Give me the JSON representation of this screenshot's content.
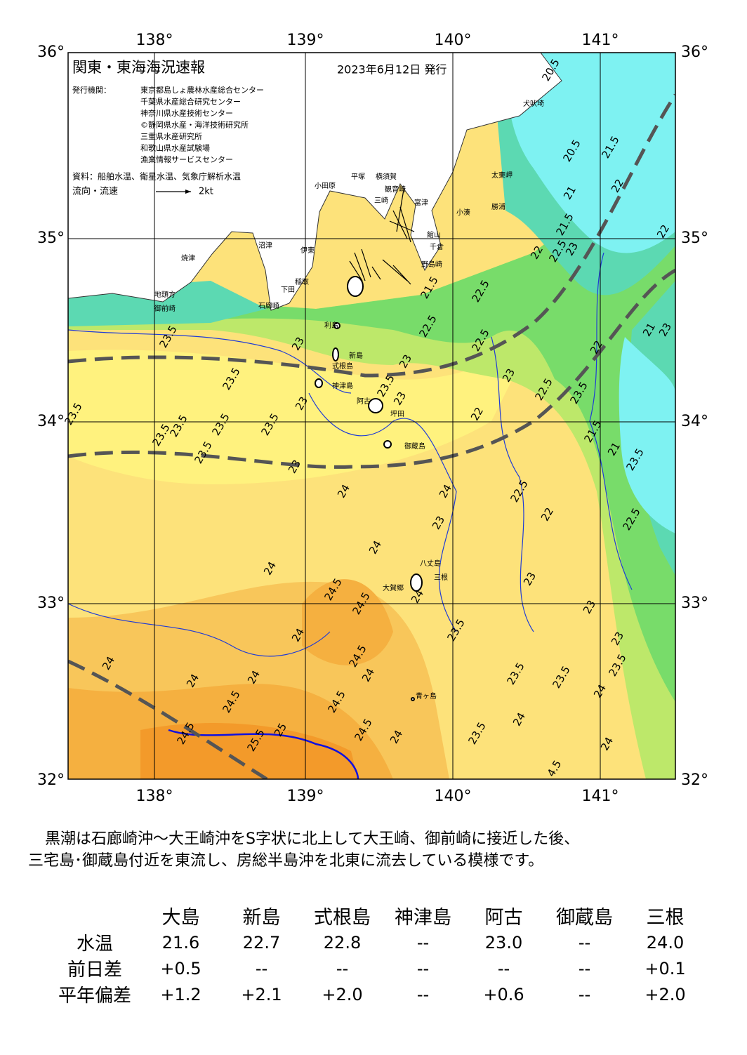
{
  "header": {
    "title": "関東・東海海況速報",
    "date": "2023年6月12日 発行",
    "issuers_label": "発行機関：",
    "issuers": [
      "東京都島しょ農林水産総合センター",
      "千葉県水産総合研究センター",
      "神奈川県水産技術センター",
      "©静岡県水産・海洋技術研究所",
      "三重県水産研究所",
      "和歌山県水産試験場",
      "漁業情報サービスセンター"
    ],
    "source": "資料：船舶水温、衛星水温、気象庁解析水温",
    "flow_legend": {
      "label": "流向・流速",
      "scale": "2kt"
    }
  },
  "map": {
    "longitude_labels": [
      "138°",
      "139°",
      "140°",
      "141°"
    ],
    "latitude_labels": [
      "36°",
      "35°",
      "34°",
      "33°",
      "32°"
    ],
    "place_names": [
      "犬吠埼",
      "太東岬",
      "勝浦",
      "小湊",
      "館山",
      "千倉",
      "野島崎",
      "富津",
      "横須賀",
      "平塚",
      "観音崎",
      "三崎",
      "小田原",
      "沼津",
      "伊東",
      "焼津",
      "稲取",
      "下田",
      "石廊崎",
      "地頭方",
      "御前崎",
      "利島",
      "新島",
      "式根島",
      "神津島",
      "阿古",
      "坪田",
      "御蔵島",
      "八丈島",
      "三根",
      "大賀郷",
      "青ヶ島"
    ],
    "contour_labels": [
      "20.5",
      "20.5",
      "21.5",
      "22",
      "21",
      "21.5",
      "22",
      "22.5",
      "23",
      "22",
      "21.5",
      "22.5",
      "22.5",
      "22.5",
      "22",
      "21",
      "23",
      "23",
      "23.5",
      "23.5",
      "23.5",
      "23.5",
      "23.5",
      "23.5",
      "23.5",
      "23.5",
      "23",
      "23",
      "23.5",
      "23",
      "23",
      "23",
      "22.5",
      "23.5",
      "22",
      "21.5",
      "21",
      "23.5",
      "24",
      "24",
      "23",
      "22.5",
      "22",
      "22.5",
      "24",
      "24",
      "24.5",
      "24.5",
      "24",
      "23",
      "23",
      "23",
      "23.5",
      "24",
      "24",
      "24.5",
      "24",
      "24",
      "24",
      "24.5",
      "24.5",
      "24.5",
      "23.5",
      "23.5",
      "23.5",
      "24",
      "24",
      "23.5",
      "24",
      "24.5",
      "25.5",
      "25",
      "24",
      "4.5"
    ]
  },
  "summary": [
    "黒潮は石廊崎沖～大王崎沖をS字状に北上して大王崎、御前崎に接近した後、",
    "三宅島･御蔵島付近を東流し、房総半島沖を北東に流去している模様です。"
  ],
  "table": {
    "columns": [
      "大島",
      "新島",
      "式根島",
      "神津島",
      "阿古",
      "御蔵島",
      "三根"
    ],
    "rows": [
      {
        "label": "水温",
        "cells": [
          "21.6",
          "22.7",
          "22.8",
          "--",
          "23.0",
          "--",
          "24.0"
        ]
      },
      {
        "label": "前日差",
        "cells": [
          "+0.5",
          "--",
          "--",
          "--",
          "--",
          "--",
          "+0.1"
        ]
      },
      {
        "label": "平年偏差",
        "cells": [
          "+1.2",
          "+2.1",
          "+2.0",
          "--",
          "+0.6",
          "--",
          "+2.0"
        ]
      }
    ]
  }
}
